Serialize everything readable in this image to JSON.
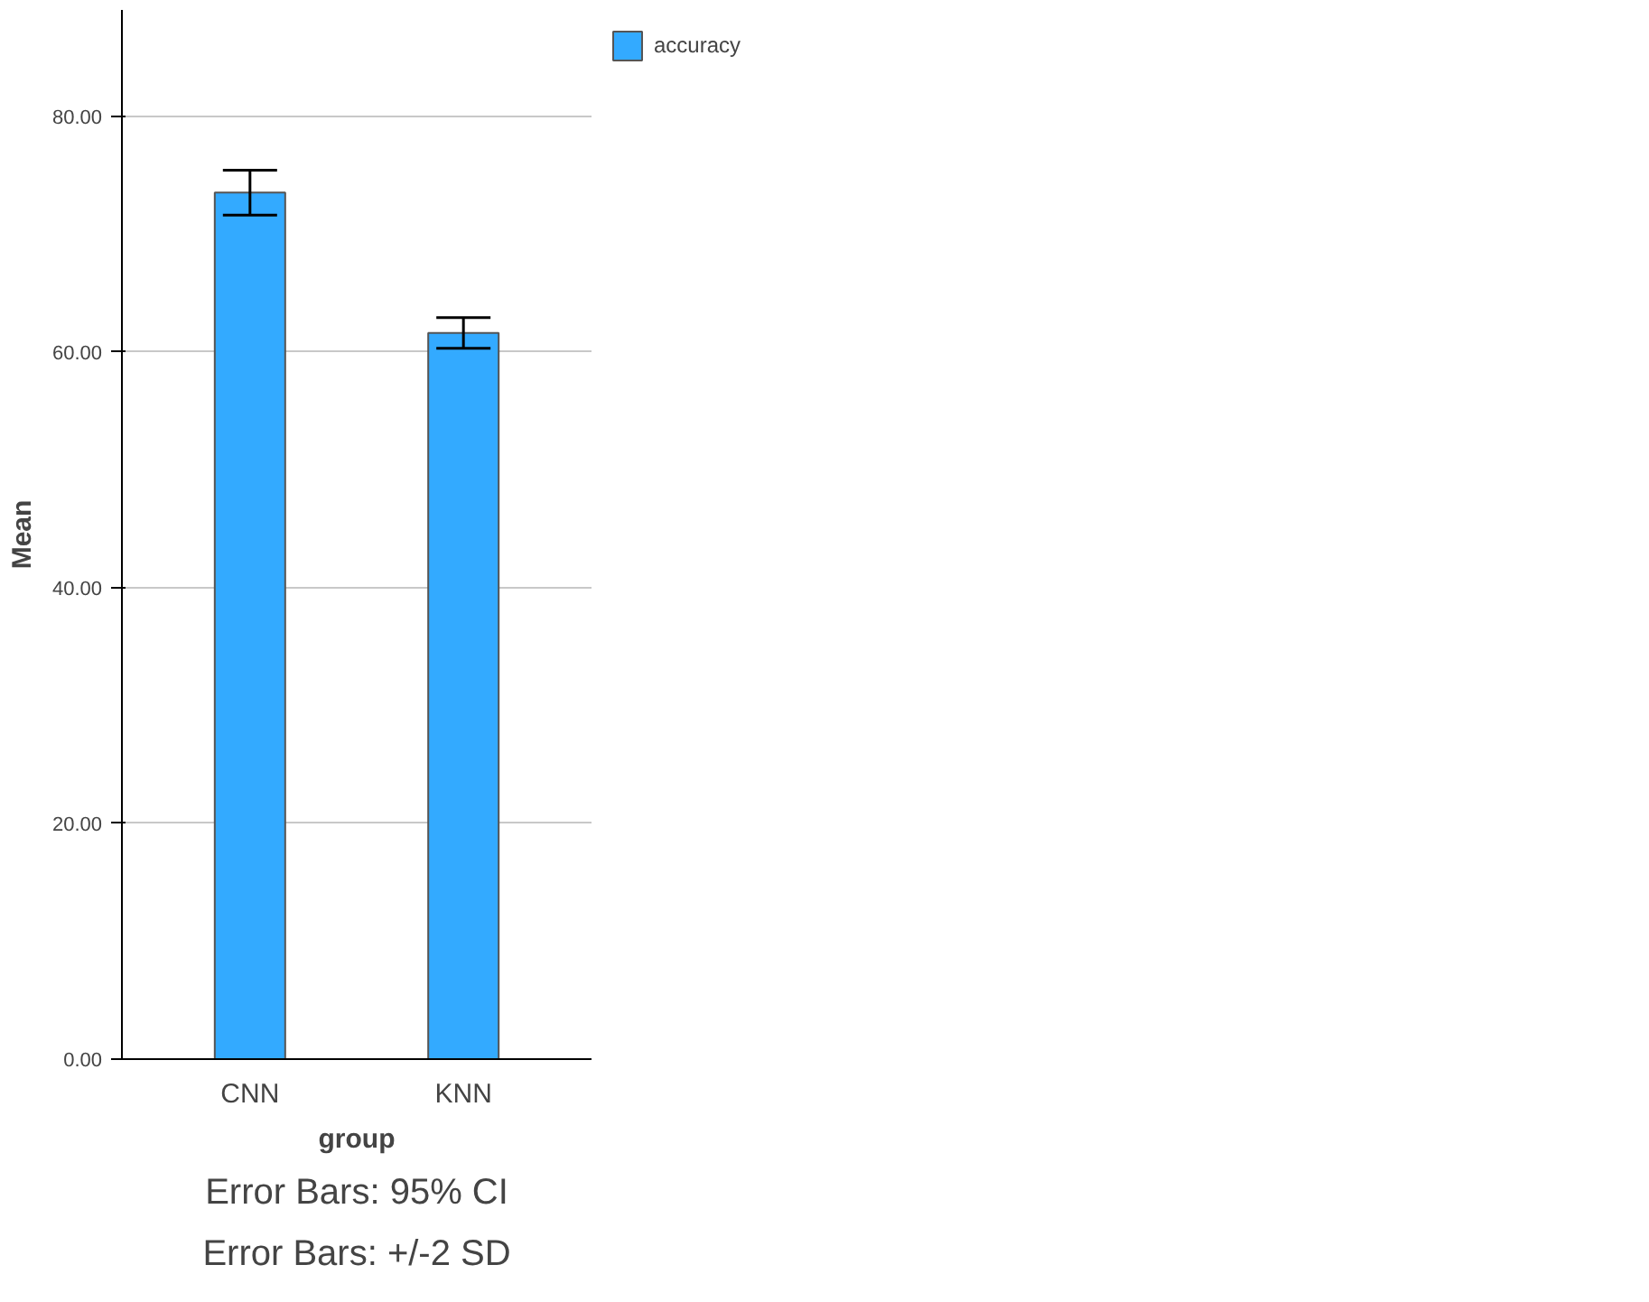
{
  "chart_data": {
    "type": "bar",
    "xlabel": "group",
    "ylabel": "Mean",
    "categories": [
      "CNN",
      "KNN"
    ],
    "series": [
      {
        "name": "accuracy",
        "color": "#33aaff",
        "values": [
          73.5,
          61.6
        ],
        "errors": [
          1.9,
          1.3
        ]
      }
    ],
    "ylim": [
      0,
      89
    ],
    "yticks": [
      {
        "value": 0,
        "label": "0.00"
      },
      {
        "value": 20,
        "label": "20.00"
      },
      {
        "value": 40,
        "label": "40.00"
      },
      {
        "value": 60,
        "label": "60.00"
      },
      {
        "value": 80,
        "label": "80.00"
      }
    ],
    "grid": "y",
    "legend": "top right",
    "annotations": [
      "Error Bars: 95% CI",
      "Error Bars: +/-2 SD"
    ]
  }
}
